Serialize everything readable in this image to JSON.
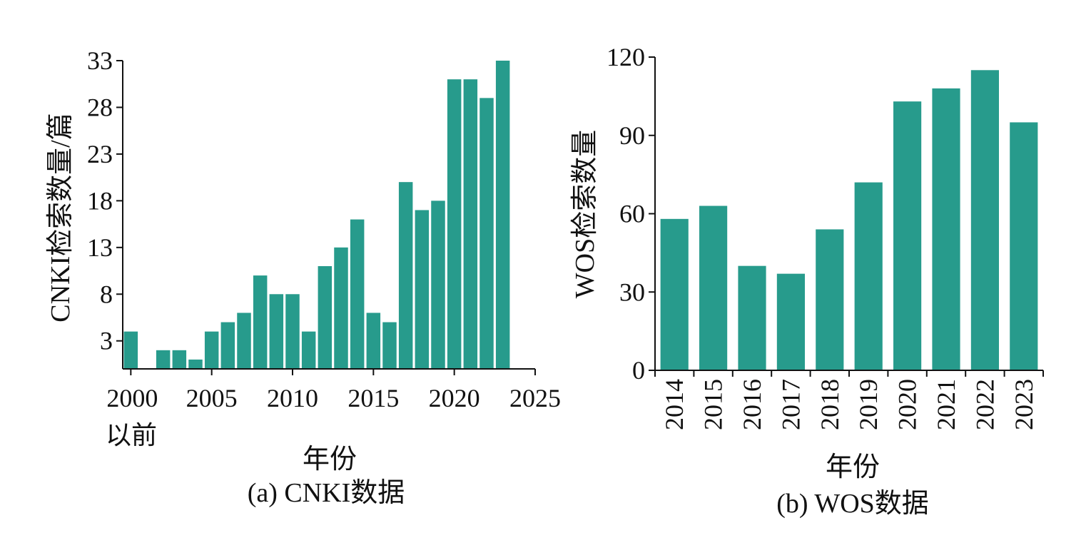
{
  "chart_data": [
    {
      "id": "a",
      "type": "bar",
      "caption": "(a) CNKI数据",
      "xlabel": "年份",
      "ylabel": "CNKI检索数量/篇",
      "x": [
        2000,
        2002,
        2003,
        2004,
        2005,
        2006,
        2007,
        2008,
        2009,
        2010,
        2011,
        2012,
        2013,
        2014,
        2015,
        2016,
        2017,
        2018,
        2019,
        2020,
        2021,
        2022,
        2023
      ],
      "values": [
        4,
        2,
        2,
        1,
        4,
        5,
        6,
        10,
        8,
        8,
        4,
        11,
        13,
        16,
        6,
        5,
        20,
        17,
        18,
        31,
        31,
        29,
        33
      ],
      "xlim": [
        1999.5,
        2025
      ],
      "ylim": [
        0,
        33
      ],
      "xticks": [
        2000,
        2005,
        2010,
        2015,
        2020,
        2025
      ],
      "xtick_labels": [
        "2000",
        "2005",
        "2010",
        "2015",
        "2020",
        "2025"
      ],
      "xtick_sublabel": "以前",
      "yticks": [
        3,
        8,
        13,
        18,
        23,
        28,
        33
      ],
      "ytick_labels": [
        "3",
        "8",
        "13",
        "18",
        "23",
        "28",
        "33"
      ],
      "bar_color": "#279B8C"
    },
    {
      "id": "b",
      "type": "bar",
      "caption": "(b) WOS数据",
      "xlabel": "年份",
      "ylabel": "WOS检索数量",
      "categories": [
        "2014",
        "2015",
        "2016",
        "2017",
        "2018",
        "2019",
        "2020",
        "2021",
        "2022",
        "2023"
      ],
      "values": [
        58,
        63,
        40,
        37,
        54,
        72,
        103,
        108,
        115,
        95
      ],
      "ylim": [
        0,
        120
      ],
      "yticks": [
        0,
        30,
        60,
        90,
        120
      ],
      "ytick_labels": [
        "0",
        "30",
        "60",
        "90",
        "120"
      ],
      "bar_color": "#279B8C"
    }
  ]
}
